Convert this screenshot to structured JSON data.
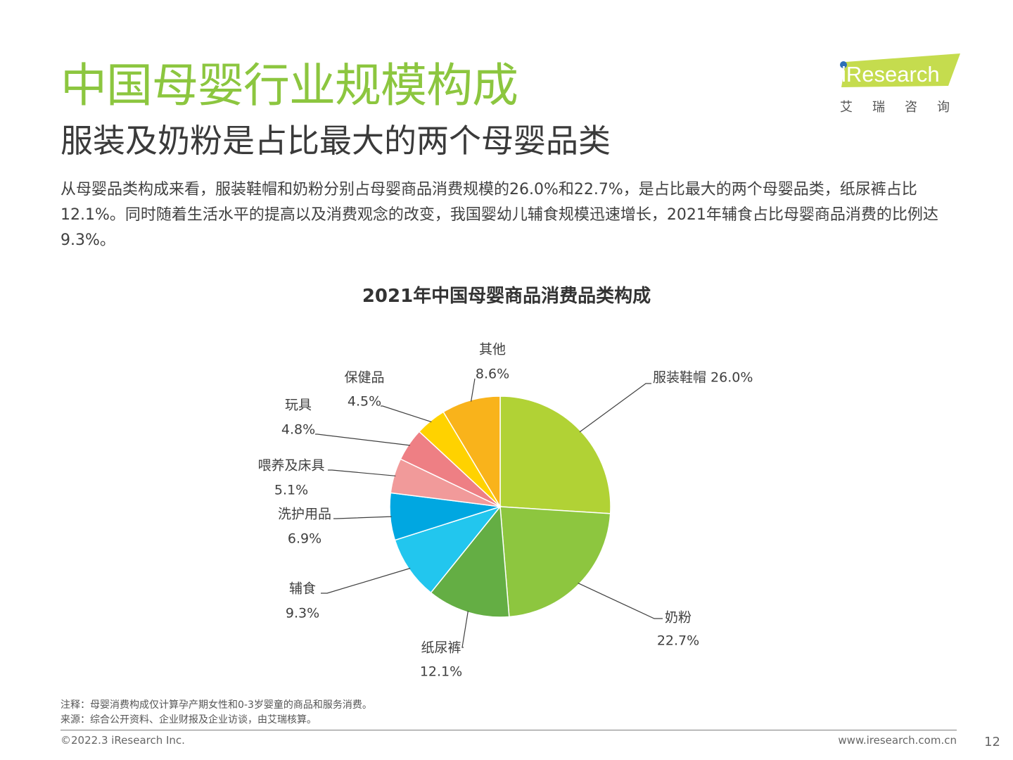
{
  "header": {
    "title": "中国母婴行业规模构成",
    "subtitle": "服装及奶粉是占比最大的两个母婴品类",
    "description": "从母婴品类构成来看，服装鞋帽和奶粉分别占母婴商品消费规模的26.0%和22.7%，是占比最大的两个母婴品类，纸尿裤占比12.1%。同时随着生活水平的提高以及消费观念的改变，我国婴幼儿辅食规模迅速增长，2021年辅食占比母婴商品消费的比例达9.3%。",
    "title_color": "#8CC63F"
  },
  "logo": {
    "brand": "iResearch",
    "cn": "艾瑞咨询",
    "colors": {
      "band": "#C5DC4E",
      "dot": "#2E6FB7",
      "text": "#ffffff"
    }
  },
  "chart_data": {
    "type": "pie",
    "title": "2021年中国母婴商品消费品类构成",
    "start_angle_deg": 0,
    "direction": "clockwise",
    "slices": [
      {
        "label": "服装鞋帽",
        "value": 26.0,
        "value_label": "26.0%",
        "color": "#B1D235"
      },
      {
        "label": "奶粉",
        "value": 22.7,
        "value_label": "22.7%",
        "color": "#8DC63F"
      },
      {
        "label": "纸尿裤",
        "value": 12.1,
        "value_label": "12.1%",
        "color": "#64AE44"
      },
      {
        "label": "辅食",
        "value": 9.3,
        "value_label": "9.3%",
        "color": "#22C6EE"
      },
      {
        "label": "洗护用品",
        "value": 6.9,
        "value_label": "6.9%",
        "color": "#00A7E1"
      },
      {
        "label": "喂养及床具",
        "value": 5.1,
        "value_label": "5.1%",
        "color": "#F19A9A"
      },
      {
        "label": "玩具",
        "value": 4.8,
        "value_label": "4.8%",
        "color": "#EE7F84"
      },
      {
        "label": "保健品",
        "value": 4.5,
        "value_label": "4.5%",
        "color": "#FFD200"
      },
      {
        "label": "其他",
        "value": 8.6,
        "value_label": "8.6%",
        "color": "#F9B31B"
      }
    ]
  },
  "footer": {
    "note": "注释：母婴消费构成仅计算孕产期女性和0-3岁婴童的商品和服务消费。",
    "source": "来源：综合公开资料、企业财报及企业访谈，由艾瑞核算。",
    "copyright": "©2022.3 iResearch Inc.",
    "website": "www.iresearch.com.cn",
    "page": "12"
  }
}
